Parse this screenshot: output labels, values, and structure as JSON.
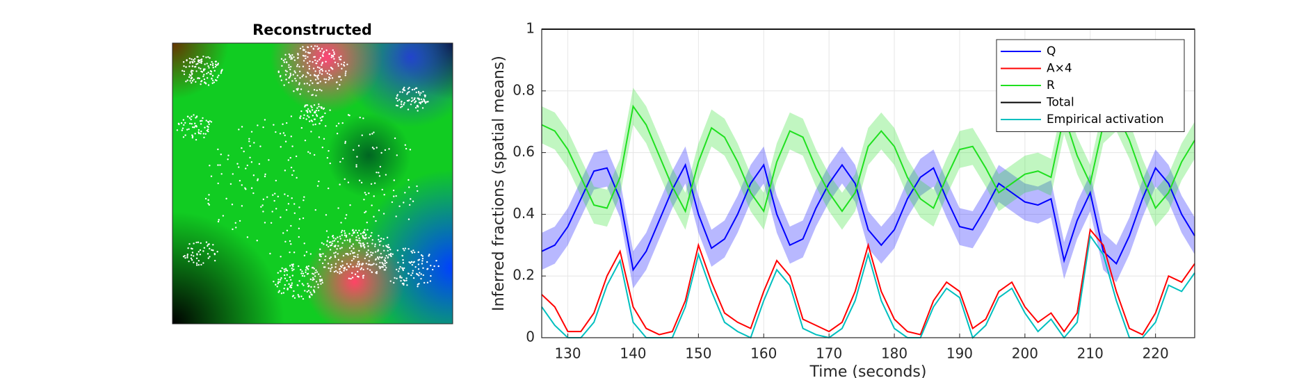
{
  "chart_data": [
    {
      "type": "image",
      "title": "Reconstructed"
    },
    {
      "type": "line",
      "xlabel": "Time (seconds)",
      "ylabel": "Inferred fractions (spatial means)",
      "xlim": [
        126,
        226
      ],
      "xticks": [
        130,
        140,
        150,
        160,
        170,
        180,
        190,
        200,
        210,
        220
      ],
      "ylim": [
        0,
        1
      ],
      "yticks": [
        0,
        0.2,
        0.4,
        0.6,
        0.8,
        1
      ],
      "grid": true,
      "legend": "upper right",
      "x": [
        126,
        128,
        130,
        132,
        134,
        136,
        138,
        140,
        142,
        144,
        146,
        148,
        150,
        152,
        154,
        156,
        158,
        160,
        162,
        164,
        166,
        168,
        170,
        172,
        174,
        176,
        178,
        180,
        182,
        184,
        186,
        188,
        190,
        192,
        194,
        196,
        198,
        200,
        202,
        204,
        206,
        208,
        210,
        212,
        214,
        216,
        218,
        220,
        222,
        224,
        226
      ],
      "series": [
        {
          "name": "Q",
          "color": "#0000ff",
          "error": 0.06,
          "values": [
            0.28,
            0.3,
            0.36,
            0.45,
            0.54,
            0.55,
            0.45,
            0.22,
            0.28,
            0.38,
            0.48,
            0.56,
            0.4,
            0.29,
            0.32,
            0.4,
            0.5,
            0.56,
            0.4,
            0.3,
            0.32,
            0.42,
            0.5,
            0.56,
            0.5,
            0.35,
            0.3,
            0.35,
            0.45,
            0.52,
            0.55,
            0.45,
            0.36,
            0.35,
            0.42,
            0.5,
            0.47,
            0.44,
            0.43,
            0.45,
            0.25,
            0.38,
            0.47,
            0.28,
            0.24,
            0.33,
            0.45,
            0.55,
            0.5,
            0.4,
            0.33
          ]
        },
        {
          "name": "A×4",
          "color": "#ff0000",
          "values": [
            0.14,
            0.1,
            0.02,
            0.02,
            0.08,
            0.2,
            0.28,
            0.1,
            0.03,
            0.01,
            0.02,
            0.12,
            0.3,
            0.18,
            0.08,
            0.05,
            0.03,
            0.15,
            0.25,
            0.2,
            0.06,
            0.04,
            0.02,
            0.05,
            0.15,
            0.3,
            0.15,
            0.06,
            0.02,
            0.01,
            0.12,
            0.18,
            0.15,
            0.03,
            0.06,
            0.15,
            0.18,
            0.1,
            0.05,
            0.08,
            0.02,
            0.08,
            0.35,
            0.3,
            0.15,
            0.03,
            0.01,
            0.08,
            0.2,
            0.18,
            0.24
          ]
        },
        {
          "name": "R",
          "color": "#1fe01f",
          "error": 0.06,
          "values": [
            0.69,
            0.67,
            0.61,
            0.52,
            0.43,
            0.42,
            0.52,
            0.75,
            0.69,
            0.59,
            0.49,
            0.41,
            0.57,
            0.68,
            0.65,
            0.57,
            0.47,
            0.41,
            0.57,
            0.67,
            0.65,
            0.55,
            0.47,
            0.41,
            0.47,
            0.62,
            0.67,
            0.62,
            0.52,
            0.45,
            0.42,
            0.52,
            0.61,
            0.62,
            0.55,
            0.47,
            0.5,
            0.53,
            0.54,
            0.52,
            0.72,
            0.59,
            0.5,
            0.69,
            0.73,
            0.64,
            0.52,
            0.42,
            0.47,
            0.57,
            0.64
          ]
        },
        {
          "name": "Total",
          "color": "#000000",
          "values": [
            1,
            1,
            1,
            1,
            1,
            1,
            1,
            1,
            1,
            1,
            1,
            1,
            1,
            1,
            1,
            1,
            1,
            1,
            1,
            1,
            1,
            1,
            1,
            1,
            1,
            1,
            1,
            1,
            1,
            1,
            1,
            1,
            1,
            1,
            1,
            1,
            1,
            1,
            1,
            1,
            1,
            1,
            1,
            1,
            1,
            1,
            1,
            1,
            1,
            1,
            1
          ]
        },
        {
          "name": "Empirical activation",
          "color": "#00bfbf",
          "values": [
            0.1,
            0.04,
            0,
            0,
            0.05,
            0.17,
            0.25,
            0.05,
            0,
            0,
            0,
            0.1,
            0.27,
            0.15,
            0.05,
            0.02,
            0,
            0.12,
            0.22,
            0.17,
            0.03,
            0.01,
            0,
            0.03,
            0.12,
            0.27,
            0.12,
            0.03,
            0,
            0,
            0.1,
            0.16,
            0.13,
            0,
            0.04,
            0.13,
            0.16,
            0.08,
            0.02,
            0.06,
            0,
            0.05,
            0.33,
            0.27,
            0.12,
            0,
            0,
            0.05,
            0.17,
            0.15,
            0.21
          ]
        }
      ]
    }
  ]
}
